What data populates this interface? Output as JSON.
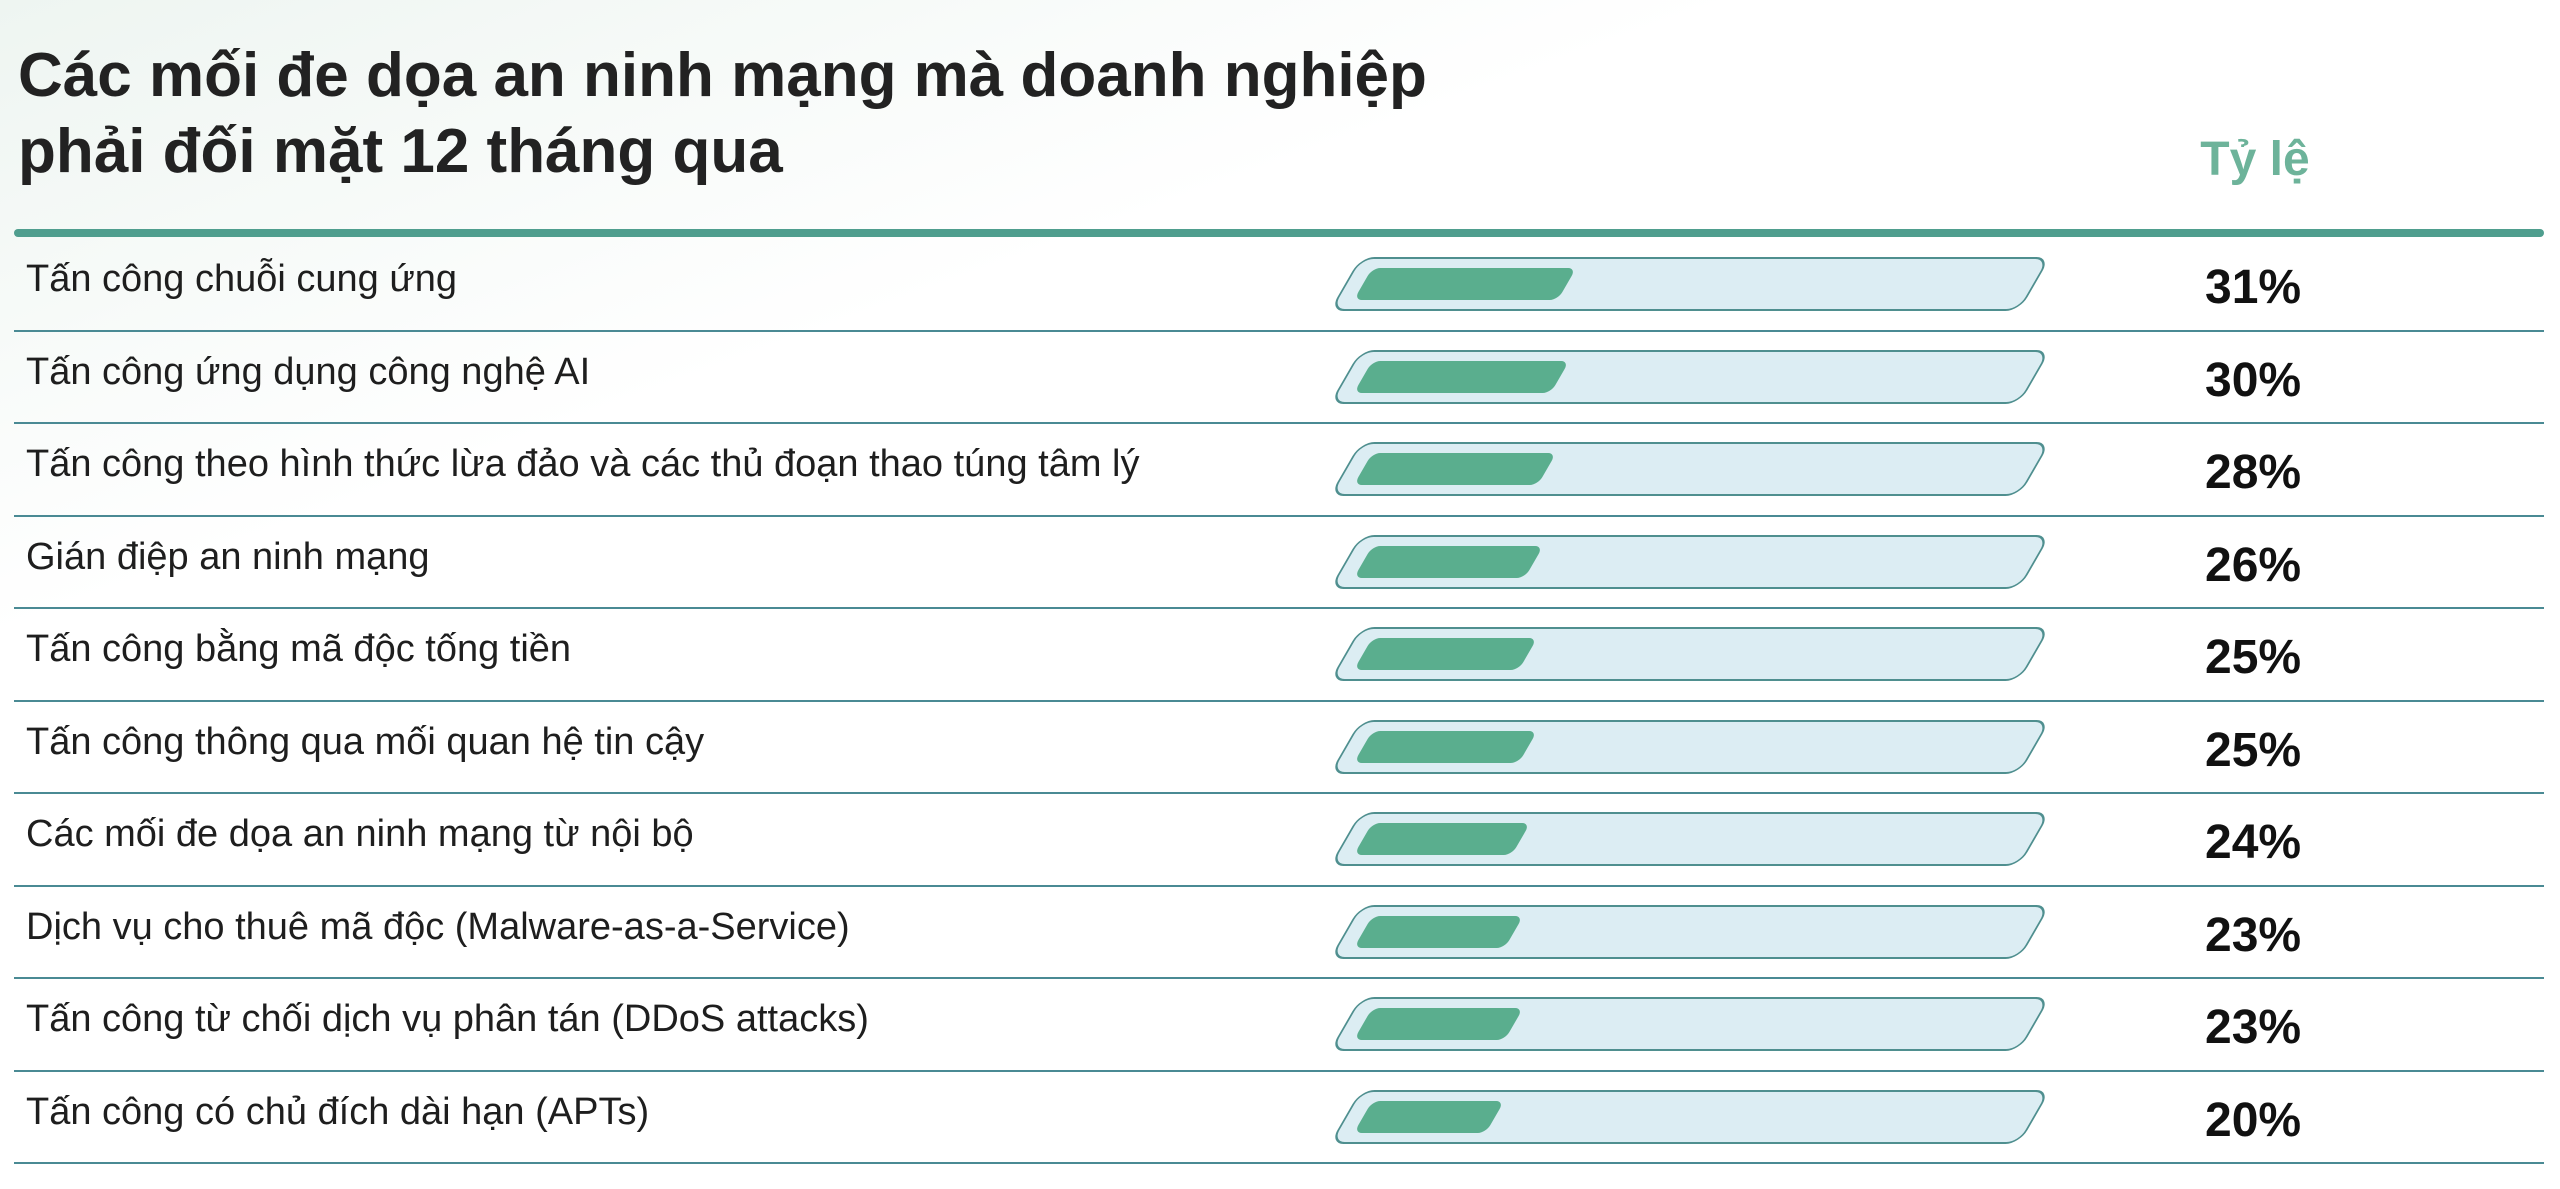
{
  "chart_data": {
    "type": "bar",
    "orientation": "horizontal",
    "title": "Các mối đe dọa an ninh mạng mà doanh nghiệp phải đối mặt 12 tháng qua",
    "value_header": "Tỷ lệ",
    "categories": [
      "Tấn công chuỗi cung ứng",
      "Tấn công ứng dụng công nghệ AI",
      "Tấn công theo hình thức lừa đảo và các thủ đoạn thao túng tâm lý",
      "Gián điệp an ninh mạng",
      "Tấn công bằng mã độc tống tiền",
      "Tấn công thông qua mối quan hệ tin cậy",
      "Các mối đe dọa an ninh mạng từ nội bộ",
      "Dịch vụ cho thuê mã độc (Malware-as-a-Service)",
      "Tấn công từ chối dịch vụ phân tán (DDoS attacks)",
      "Tấn công có chủ đích dài hạn (APTs)"
    ],
    "values": [
      31,
      30,
      28,
      26,
      25,
      25,
      24,
      23,
      23,
      20
    ],
    "value_labels": [
      "31%",
      "30%",
      "28%",
      "26%",
      "25%",
      "25%",
      "24%",
      "23%",
      "23%",
      "20%"
    ],
    "color": "#5aae8e",
    "track_color": "#dcedf3"
  }
}
